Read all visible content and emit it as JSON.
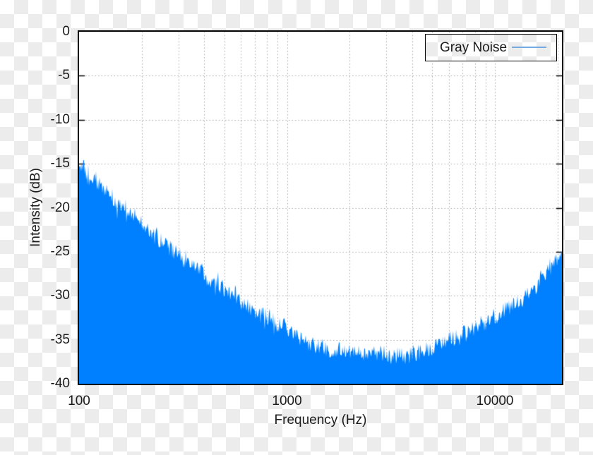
{
  "chart_data": {
    "type": "area",
    "title": "",
    "xlabel": "Frequency (Hz)",
    "ylabel": "Intensity (dB)",
    "x_scale": "log",
    "xlim": [
      100,
      21000
    ],
    "ylim": [
      -40,
      0
    ],
    "grid": true,
    "legend_position": "top-right",
    "x_ticks": [
      {
        "value": 100,
        "label": "100"
      },
      {
        "value": 1000,
        "label": "1000"
      },
      {
        "value": 10000,
        "label": "10000"
      }
    ],
    "y_ticks": [
      {
        "value": 0,
        "label": "0"
      },
      {
        "value": -5,
        "label": "-5"
      },
      {
        "value": -10,
        "label": "-10"
      },
      {
        "value": -15,
        "label": "-15"
      },
      {
        "value": -20,
        "label": "-20"
      },
      {
        "value": -25,
        "label": "-25"
      },
      {
        "value": -30,
        "label": "-30"
      },
      {
        "value": -35,
        "label": "-35"
      },
      {
        "value": -40,
        "label": "-40"
      }
    ],
    "x_gridlines": [
      200,
      300,
      400,
      500,
      600,
      700,
      800,
      900,
      1000,
      2000,
      3000,
      4000,
      5000,
      6000,
      7000,
      8000,
      9000,
      10000,
      20000
    ],
    "y_gridlines": [
      -5,
      -10,
      -15,
      -20,
      -25,
      -30,
      -35
    ],
    "series": [
      {
        "name": "Gray Noise",
        "fill_color": "#0080ff",
        "legend_line_color": "#76abe2",
        "envelope_db": [
          [
            100,
            -15.1
          ],
          [
            108,
            -16.1
          ],
          [
            120,
            -17.0
          ],
          [
            135,
            -17.9
          ],
          [
            150,
            -19.3
          ],
          [
            170,
            -20.3
          ],
          [
            200,
            -21.9
          ],
          [
            230,
            -23.1
          ],
          [
            260,
            -24.1
          ],
          [
            300,
            -25.3
          ],
          [
            350,
            -26.4
          ],
          [
            400,
            -27.4
          ],
          [
            450,
            -28.2
          ],
          [
            500,
            -29.0
          ],
          [
            600,
            -30.4
          ],
          [
            700,
            -31.5
          ],
          [
            800,
            -32.4
          ],
          [
            900,
            -33.2
          ],
          [
            1000,
            -33.9
          ],
          [
            1200,
            -35.0
          ],
          [
            1400,
            -35.7
          ],
          [
            1700,
            -36.2
          ],
          [
            2000,
            -36.5
          ],
          [
            2500,
            -36.7
          ],
          [
            3000,
            -36.8
          ],
          [
            3500,
            -36.7
          ],
          [
            4000,
            -36.5
          ],
          [
            4500,
            -36.2
          ],
          [
            5000,
            -35.9
          ],
          [
            6000,
            -35.1
          ],
          [
            7000,
            -34.3
          ],
          [
            8000,
            -33.6
          ],
          [
            9000,
            -33.0
          ],
          [
            10000,
            -32.4
          ],
          [
            11000,
            -31.8
          ],
          [
            12000,
            -31.2
          ],
          [
            13000,
            -30.6
          ],
          [
            14000,
            -30.0
          ],
          [
            15000,
            -29.4
          ],
          [
            16000,
            -28.6
          ],
          [
            17000,
            -27.9
          ],
          [
            18000,
            -27.2
          ],
          [
            19000,
            -26.4
          ],
          [
            20000,
            -25.7
          ],
          [
            21000,
            -25.0
          ]
        ],
        "noise_amplitude_db": 1.35,
        "noise_spike_db": 1.5,
        "noise_seed": 1234
      }
    ]
  },
  "legend": {
    "label": "Gray Noise"
  },
  "colors": {
    "plot_background": "#ffffff",
    "border": "#000000",
    "grid": "#a5a5a5",
    "text": "#1b1b1b",
    "fill": "#0080ff",
    "legend_line": "#76abe2",
    "checker_light": "#ffffff",
    "checker_dark": "#ececec"
  }
}
